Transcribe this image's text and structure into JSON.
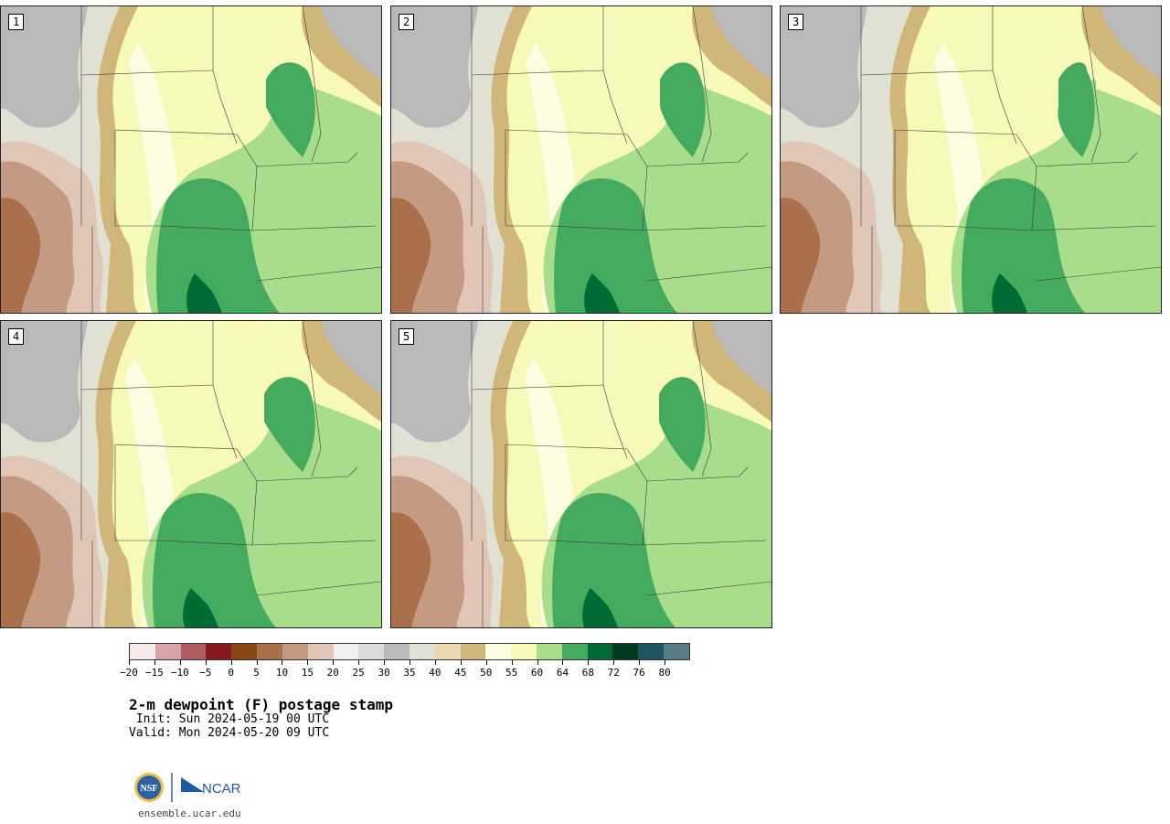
{
  "panels": [
    {
      "label": "1",
      "variant": 0
    },
    {
      "label": "2",
      "variant": 1
    },
    {
      "label": "3",
      "variant": 2
    },
    {
      "label": "4",
      "variant": 3
    },
    {
      "label": "5",
      "variant": 4
    }
  ],
  "colorbar": {
    "colors": [
      "#f5e9ea",
      "#d5a3a8",
      "#b05e63",
      "#861a20",
      "#8a4612",
      "#a9704b",
      "#c49a82",
      "#e0c6b6",
      "#f0f0f0",
      "#dcdcdc",
      "#b9b9b9",
      "#e1e1d3",
      "#ead9b0",
      "#d1b679",
      "#fdfde2",
      "#f7f9b8",
      "#a8dd8c",
      "#44aa5e",
      "#006b34",
      "#003d1e",
      "#1e5560",
      "#567e84"
    ],
    "tick_labels": [
      "−20",
      "−15",
      "−10",
      "−5",
      "0",
      "5",
      "10",
      "15",
      "20",
      "25",
      "30",
      "35",
      "40",
      "45",
      "50",
      "55",
      "60",
      "64",
      "68",
      "72",
      "76",
      "80"
    ]
  },
  "title": "2-m dewpoint (F) postage stamp",
  "init_line": " Init: Sun 2024-05-19 00 UTC",
  "valid_line": "Valid: Mon 2024-05-20 09 UTC",
  "logo": {
    "nsf": "NSF",
    "ncar": "NCAR"
  },
  "footer_url": "ensemble.ucar.edu"
}
